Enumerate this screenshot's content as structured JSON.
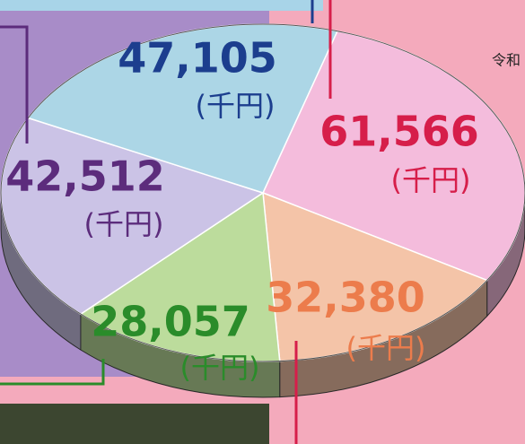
{
  "chart_data": {
    "type": "pie",
    "categories": [
      null,
      null,
      null,
      null,
      null
    ],
    "values": [
      61566,
      32380,
      28057,
      42512,
      47105
    ],
    "value_labels": [
      "61,566",
      "32,380",
      "28,057",
      "42,512",
      "47,105"
    ],
    "unit_label": "(千円)",
    "colors": [
      "#f4bcdc",
      "#f4c4a8",
      "#bcdc9c",
      "#cbc3e6",
      "#acd6e6"
    ],
    "label_colors": [
      "#d61e4a",
      "#ec7c4c",
      "#2a8c2a",
      "#5c2c7c",
      "#1c3e8e"
    ],
    "annotation": "令和"
  }
}
